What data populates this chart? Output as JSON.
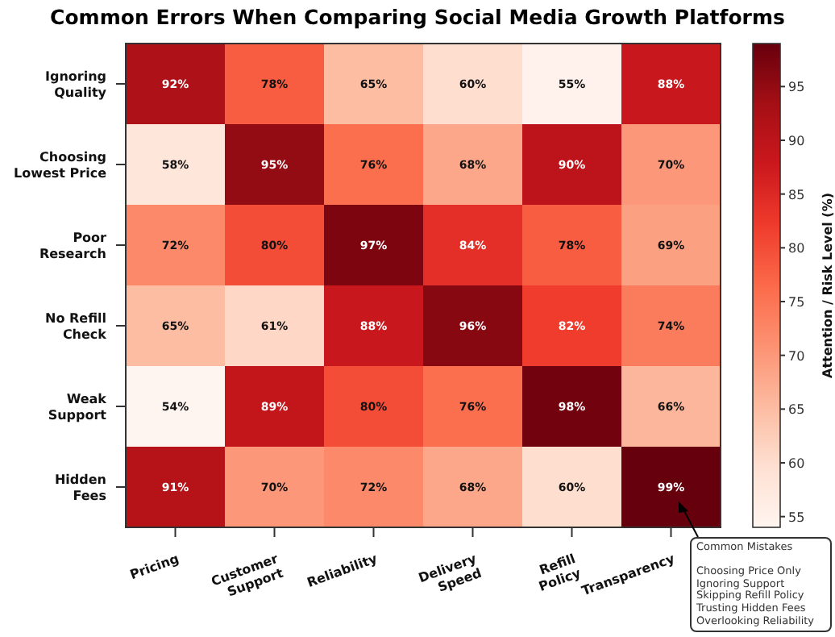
{
  "chart_data": {
    "type": "heatmap",
    "title": "Common Errors When Comparing Social Media Growth Platforms",
    "categories": [
      "Pricing",
      "Customer\nSupport",
      "Reliability",
      "Delivery\nSpeed",
      "Refill\nPolicy",
      "Transparency"
    ],
    "y_categories": [
      "Ignoring\nQuality",
      "Choosing\nLowest Price",
      "Poor\nResearch",
      "No Refill\nCheck",
      "Weak\nSupport",
      "Hidden\nFees"
    ],
    "cells": [
      [
        92,
        78,
        65,
        60,
        55,
        88
      ],
      [
        58,
        95,
        76,
        68,
        90,
        70
      ],
      [
        72,
        80,
        97,
        84,
        78,
        69
      ],
      [
        65,
        61,
        88,
        96,
        82,
        74
      ],
      [
        54,
        89,
        80,
        76,
        98,
        66
      ],
      [
        91,
        70,
        72,
        68,
        60,
        99
      ]
    ],
    "cell_labels": [
      [
        "92%",
        "78%",
        "65%",
        "60%",
        "55%",
        "88%"
      ],
      [
        "58%",
        "95%",
        "76%",
        "68%",
        "90%",
        "70%"
      ],
      [
        "72%",
        "80%",
        "97%",
        "84%",
        "78%",
        "69%"
      ],
      [
        "65%",
        "61%",
        "88%",
        "96%",
        "82%",
        "74%"
      ],
      [
        "54%",
        "89%",
        "80%",
        "76%",
        "98%",
        "66%"
      ],
      [
        "91%",
        "70%",
        "72%",
        "68%",
        "60%",
        "99%"
      ]
    ],
    "clim": [
      54,
      99
    ],
    "cticks": [
      55,
      60,
      65,
      70,
      75,
      80,
      85,
      90,
      95
    ],
    "clabel": "Attention / Risk Level (%)",
    "annotations": [
      "Common Mistakes\n\nChoosing Price Only\nIgnoring Support\nSkipping Refill Policy\nTrusting Hidden Fees\nOverlooking Reliability"
    ]
  }
}
